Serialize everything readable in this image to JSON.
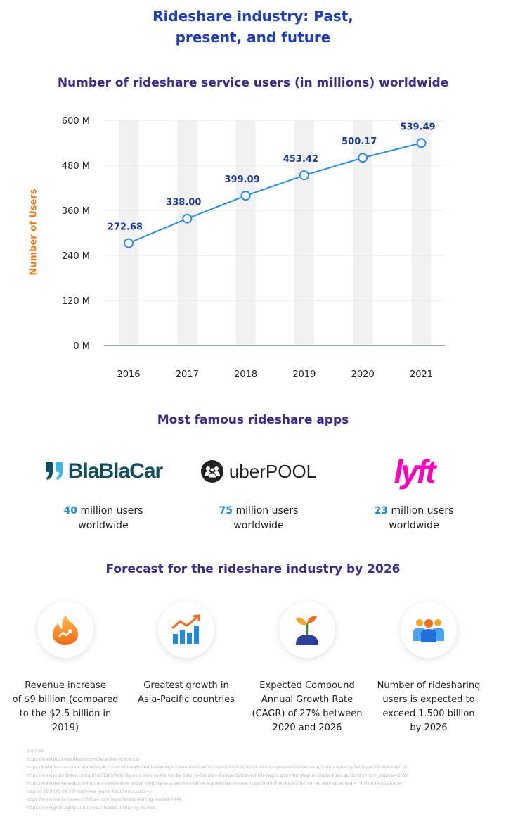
{
  "header": {
    "title_line1": "Rideshare industry: Past,",
    "title_line2": "present, and future"
  },
  "chart_data": {
    "type": "line",
    "title": "Number of rideshare service users (in millions) worldwide",
    "ylabel": "Number of Users",
    "x": [
      "2016",
      "2017",
      "2018",
      "2019",
      "2020",
      "2021"
    ],
    "series": [
      {
        "values": [
          272.68,
          338.0,
          399.09,
          453.42,
          500.17,
          539.49
        ]
      }
    ],
    "data_labels": [
      "272.68",
      "338.00",
      "399.09",
      "453.42",
      "500.17",
      "539.49"
    ],
    "yticks": [
      "0 M",
      "120 M",
      "240 M",
      "360 M",
      "480 M",
      "600 M"
    ],
    "ylim": [
      0,
      600
    ],
    "colors": {
      "line": "#2a8ee6",
      "label": "#1f3c99",
      "band": "#f1f1f1",
      "ylabel": "#f07b1a"
    }
  },
  "apps": {
    "title": "Most famous rideshare apps",
    "items": [
      {
        "logo": "BlaBlaCar",
        "num": "40",
        "text": "million users",
        "line2": "worldwide"
      },
      {
        "logo": "uberPOOL",
        "num": "75",
        "text": "million users",
        "line2": "worldwide"
      },
      {
        "logo": "lyft",
        "num": "23",
        "text": "million users",
        "line2": "worldwide"
      }
    ]
  },
  "forecast": {
    "title": "Forecast for the rideshare industry by 2026",
    "items": [
      {
        "icon": "revenue-flame-icon",
        "lines": [
          "Revenue increase",
          "of $9 billion (compared",
          "to the $2.5 billion in 2019)"
        ]
      },
      {
        "icon": "growth-chart-icon",
        "lines": [
          "Greatest growth in",
          "Asia-Pacific countries"
        ]
      },
      {
        "icon": "plant-sprout-icon",
        "lines": [
          "Expected Compound",
          "Annual Growth Rate",
          "(CAGR) of 27% between",
          "2020 and 2026"
        ]
      },
      {
        "icon": "users-group-icon",
        "lines": [
          "Number of ridesharing",
          "users is expected to",
          "exceed 1.500 billion",
          "by 2026"
        ]
      }
    ]
  },
  "sources": {
    "label": "Sources:",
    "links": [
      "https://www.businessofapps.com/data/uber-statistics/",
      "https://buildfire.com/uber-statistics/#:~:text=Global%20ridesharing%20users%20set%20to%20hit%2C%20it's%20projected%20that,using%20ridesharing%20apps%20in%202019",
      "https://www.reportlinker.com/p05806383/Mobility-as-a-Service-Market-by-Service-Solution-Transportation-Vehicle-Application-And-Region-Global-Forecast-to.html?utm_source=GNW",
      "https://www.marketwatch.com/press-release/the-global-mobility-as-a-service-market-is-projected-to-reach-usd-704-billion-by-2030-from-an-estimated-usd-47-billion-in-2020-at-a-",
      "cagr-of-31-2020-06-27?mod=mw_more_headlines&tesla=y",
      "https://www.marketresearchfuture.com/reports/ride-sharing-market-7444",
      "https://www.gminsights.com/pressrelease/carsharing-market"
    ]
  }
}
